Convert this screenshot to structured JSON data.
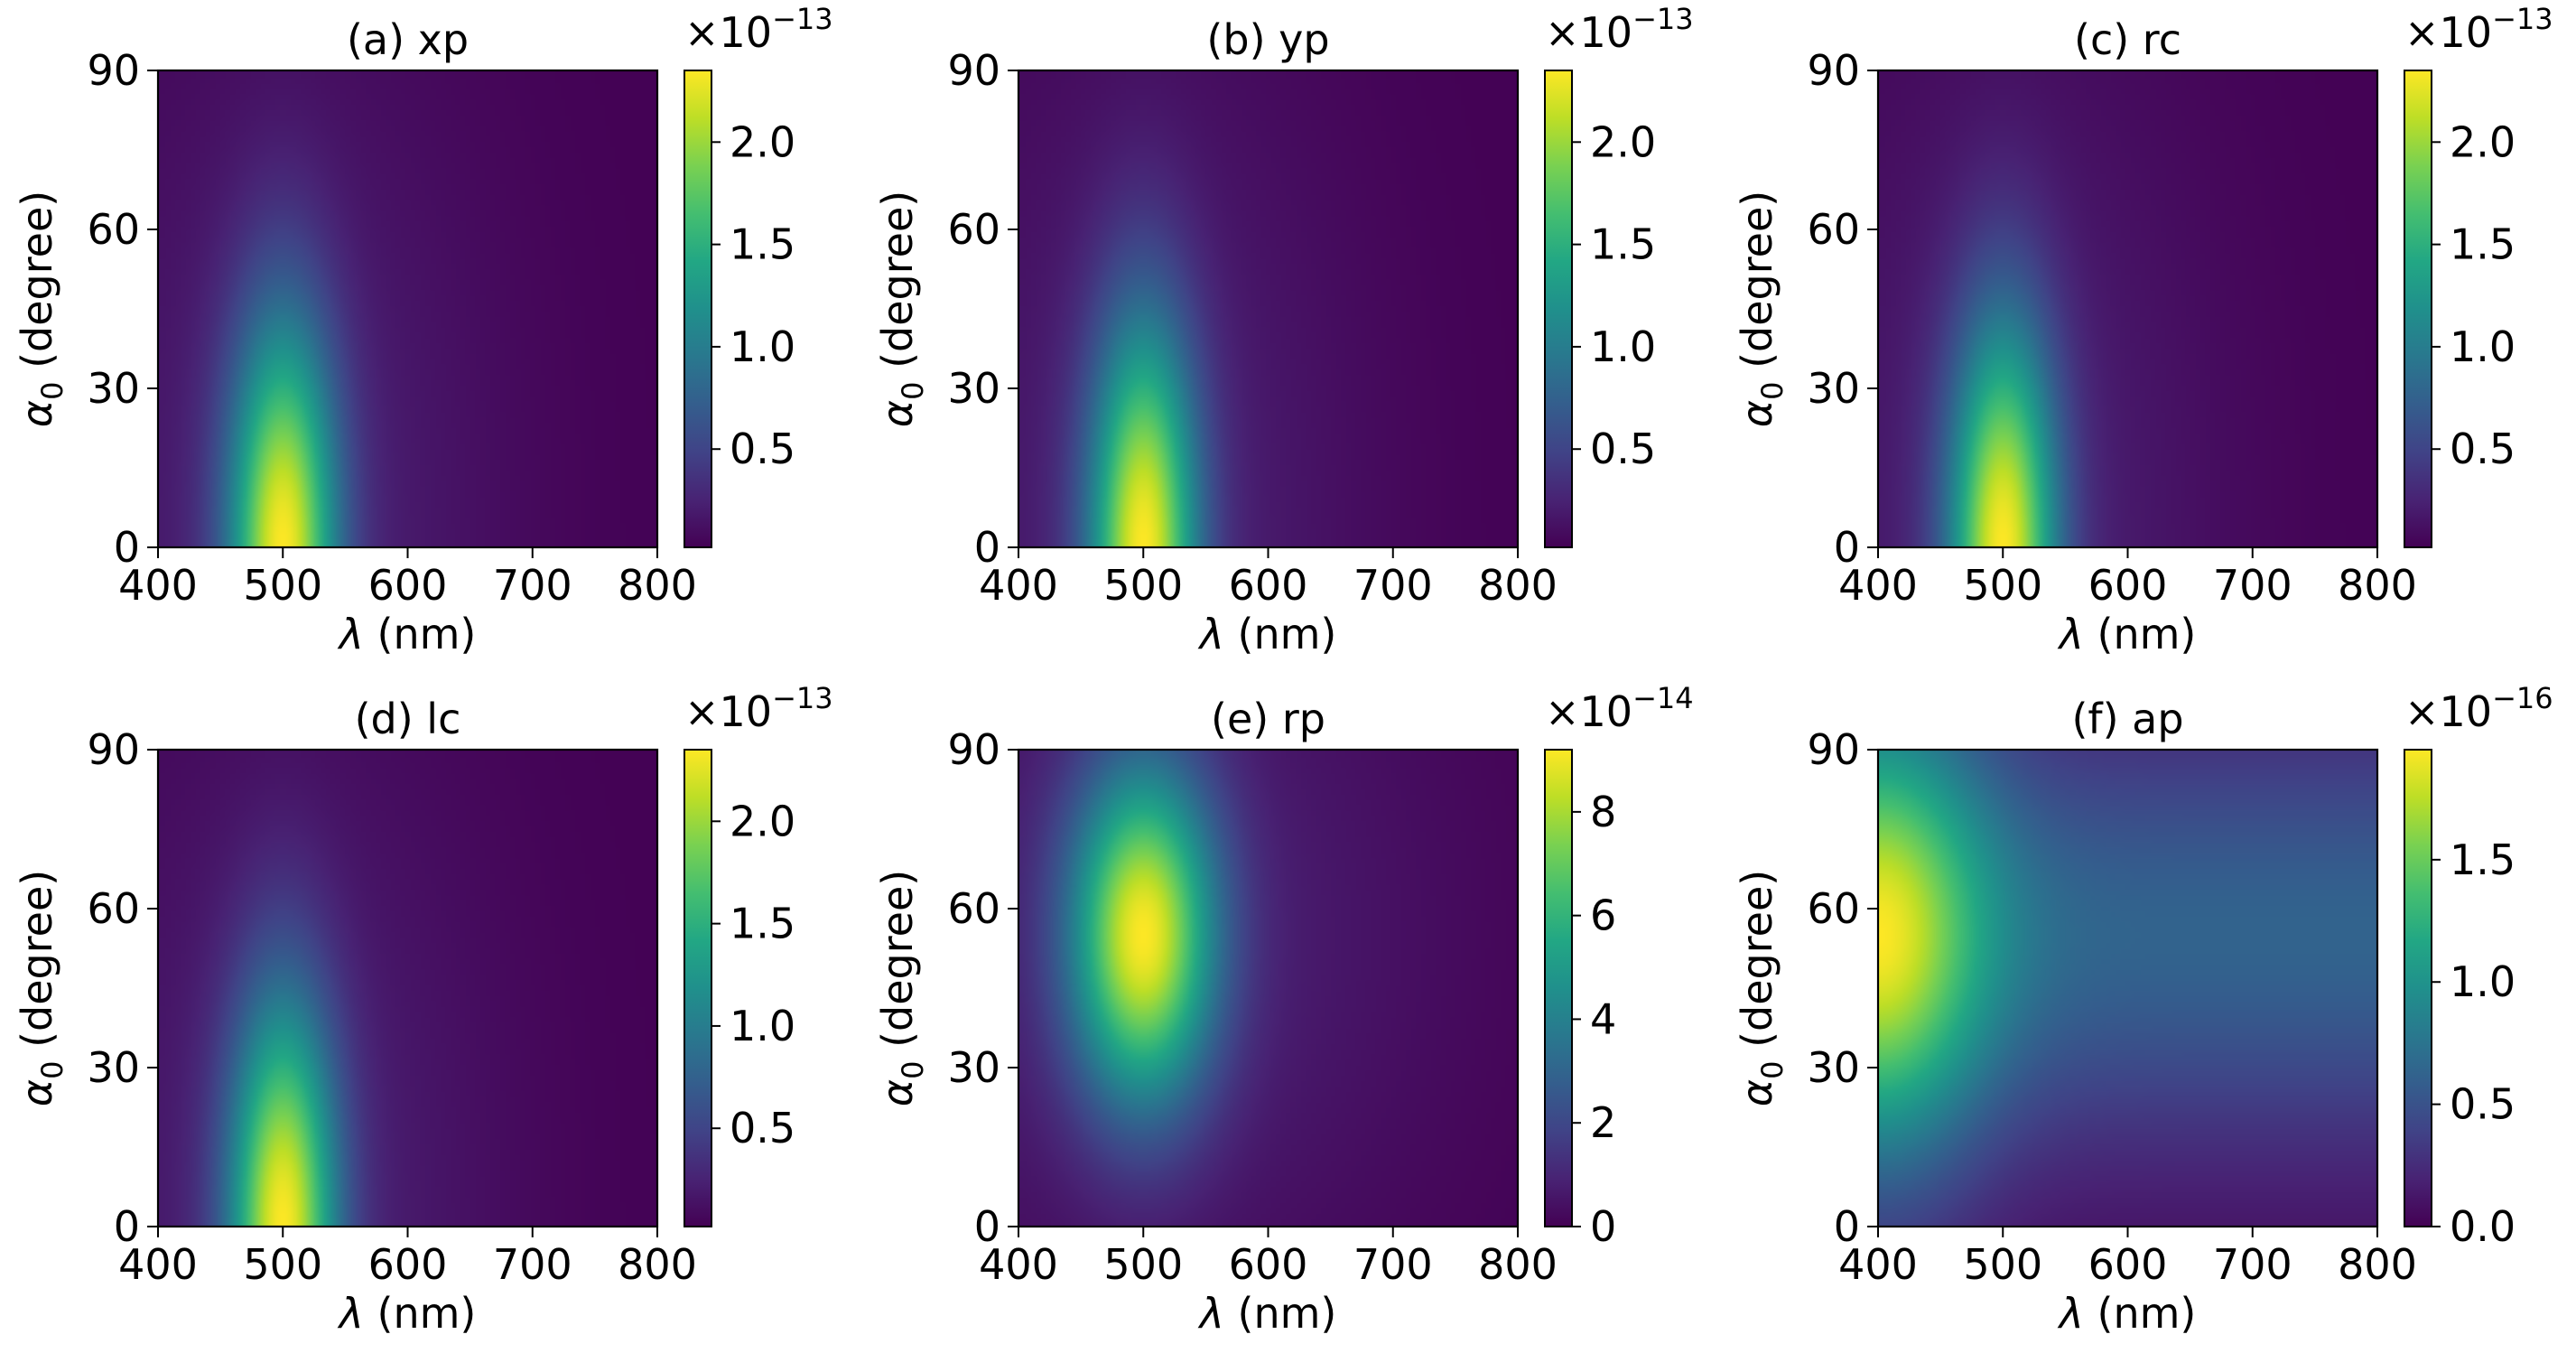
{
  "figure": {
    "background": "#ffffff"
  },
  "colormap": "viridis",
  "chart_data": [
    {
      "type": "heatmap",
      "title": "(a) xp",
      "xlabel": "λ (nm)",
      "ylabel": "α0 (degree)",
      "xlim": [
        400,
        800
      ],
      "ylim": [
        0,
        90
      ],
      "xticks": [
        400,
        500,
        600,
        700,
        800
      ],
      "yticks": [
        0,
        30,
        60,
        90
      ],
      "colorbar": {
        "multiplier": "×10",
        "exponent": "−13",
        "ticks": [
          "0.5",
          "1.0",
          "1.5",
          "2.0"
        ],
        "tick_values": [
          0.5,
          1.0,
          1.5,
          2.0
        ],
        "range": [
          0.02,
          2.35
        ]
      },
      "model": {
        "peak_x": 500,
        "peak_y": 0,
        "sx": 30,
        "sy": 30,
        "amp": 2.35,
        "base": 0.02,
        "tail": 0.1
      }
    },
    {
      "type": "heatmap",
      "title": "(b) yp",
      "xlabel": "λ (nm)",
      "ylabel": "α0 (degree)",
      "xlim": [
        400,
        800
      ],
      "ylim": [
        0,
        90
      ],
      "xticks": [
        400,
        500,
        600,
        700,
        800
      ],
      "yticks": [
        0,
        30,
        60,
        90
      ],
      "colorbar": {
        "multiplier": "×10",
        "exponent": "−13",
        "ticks": [
          "0.5",
          "1.0",
          "1.5",
          "2.0"
        ],
        "tick_values": [
          0.5,
          1.0,
          1.5,
          2.0
        ],
        "range": [
          0.02,
          2.35
        ]
      },
      "model": {
        "peak_x": 500,
        "peak_y": 0,
        "sx": 30,
        "sy": 30,
        "amp": 2.35,
        "base": 0.02,
        "tail": 0.1
      }
    },
    {
      "type": "heatmap",
      "title": "(c) rc",
      "xlabel": "λ (nm)",
      "ylabel": "α0 (degree)",
      "xlim": [
        400,
        800
      ],
      "ylim": [
        0,
        90
      ],
      "xticks": [
        400,
        500,
        600,
        700,
        800
      ],
      "yticks": [
        0,
        30,
        60,
        90
      ],
      "colorbar": {
        "multiplier": "×10",
        "exponent": "−13",
        "ticks": [
          "0.5",
          "1.0",
          "1.5",
          "2.0"
        ],
        "tick_values": [
          0.5,
          1.0,
          1.5,
          2.0
        ],
        "range": [
          0.02,
          2.35
        ]
      },
      "model": {
        "peak_x": 500,
        "peak_y": 0,
        "sx": 30,
        "sy": 30,
        "amp": 2.35,
        "base": 0.02,
        "tail": 0.1
      }
    },
    {
      "type": "heatmap",
      "title": "(d) lc",
      "xlabel": "λ (nm)",
      "ylabel": "α0 (degree)",
      "xlim": [
        400,
        800
      ],
      "ylim": [
        0,
        90
      ],
      "xticks": [
        400,
        500,
        600,
        700,
        800
      ],
      "yticks": [
        0,
        30,
        60,
        90
      ],
      "colorbar": {
        "multiplier": "×10",
        "exponent": "−13",
        "ticks": [
          "0.5",
          "1.0",
          "1.5",
          "2.0"
        ],
        "tick_values": [
          0.5,
          1.0,
          1.5,
          2.0
        ],
        "range": [
          0.02,
          2.35
        ]
      },
      "model": {
        "peak_x": 500,
        "peak_y": 0,
        "sx": 30,
        "sy": 30,
        "amp": 2.35,
        "base": 0.02,
        "tail": 0.1
      }
    },
    {
      "type": "heatmap",
      "title": "(e) rp",
      "xlabel": "λ (nm)",
      "ylabel": "α0 (degree)",
      "xlim": [
        400,
        800
      ],
      "ylim": [
        0,
        90
      ],
      "xticks": [
        400,
        500,
        600,
        700,
        800
      ],
      "yticks": [
        0,
        30,
        60,
        90
      ],
      "colorbar": {
        "multiplier": "×10",
        "exponent": "−14",
        "ticks": [
          "0",
          "2",
          "4",
          "6",
          "8"
        ],
        "tick_values": [
          0,
          2,
          4,
          6,
          8
        ],
        "range": [
          0,
          9.2
        ]
      },
      "model": {
        "peak_x": 500,
        "peak_y": 55,
        "sx": 40,
        "sy": 22,
        "amp": 9.2,
        "base": 0.0,
        "tail": 0.1
      }
    },
    {
      "type": "heatmap",
      "title": "(f) ap",
      "xlabel": "λ (nm)",
      "ylabel": "α0 (degree)",
      "xlim": [
        400,
        800
      ],
      "ylim": [
        0,
        90
      ],
      "xticks": [
        400,
        500,
        600,
        700,
        800
      ],
      "yticks": [
        0,
        30,
        60,
        90
      ],
      "colorbar": {
        "multiplier": "×10",
        "exponent": "−16",
        "ticks": [
          "0.0",
          "0.5",
          "1.0",
          "1.5"
        ],
        "tick_values": [
          0.0,
          0.5,
          1.0,
          1.5
        ],
        "range": [
          0,
          1.95
        ]
      },
      "model": {
        "peak_x": 400,
        "peak_y": 55,
        "sx": 60,
        "sy": 28,
        "amp": 1.95,
        "base": 0.0,
        "tail": 0.5,
        "kind": "edge"
      }
    }
  ]
}
